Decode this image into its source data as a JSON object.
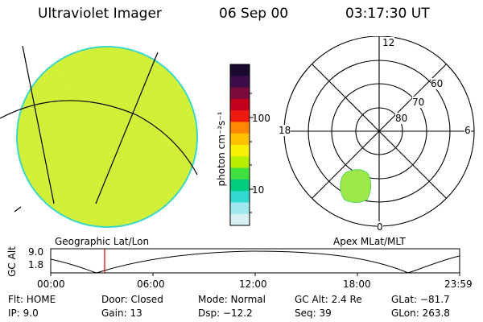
{
  "header": {
    "instrument": "Ultraviolet Imager",
    "date": "06 Sep 00",
    "time": "03:17:30 UT"
  },
  "geo_panel": {
    "label": "Geographic Lat/Lon",
    "fill_color": "#d4f032",
    "edge_color": "#3dd6c8"
  },
  "colorbar": {
    "unit_label": "photon cm⁻²s⁻¹",
    "tick_labels": [
      "100",
      "10"
    ],
    "scale": "log",
    "colors": [
      "#1a0a2e",
      "#3d0c4a",
      "#7a0a3c",
      "#c2001e",
      "#ee1a10",
      "#ff8800",
      "#ffc000",
      "#f7f000",
      "#b8ee00",
      "#40e040",
      "#00cc80",
      "#30d8d0",
      "#9ee8ee",
      "#d8f0f4"
    ]
  },
  "polar_panel": {
    "label": "Apex MLat/MLT",
    "mlt_labels": {
      "top": "12",
      "left": "18",
      "right": "6",
      "bottom": "0"
    },
    "lat_labels": [
      "60",
      "70",
      "80"
    ],
    "spot_color": "#9ee84a"
  },
  "altitude_plot": {
    "ylabel": "GC Alt",
    "ytick_labels": [
      "9.0",
      "1.8"
    ],
    "xtick_labels": [
      "00:00",
      "06:00",
      "12:00",
      "18:00",
      "23:59"
    ],
    "current_time_color": "#cc0000"
  },
  "status": {
    "flt": "Flt: HOME",
    "ip": "IP:  9.0",
    "door": "Door: Closed",
    "gain": "Gain: 13",
    "mode": "Mode: Normal",
    "dsp": "Dsp:  −12.2",
    "gcalt": "GC Alt: 2.4 Re",
    "seq": "Seq: 39",
    "glat": "GLat: −81.7",
    "glon": "GLon: 263.8"
  }
}
